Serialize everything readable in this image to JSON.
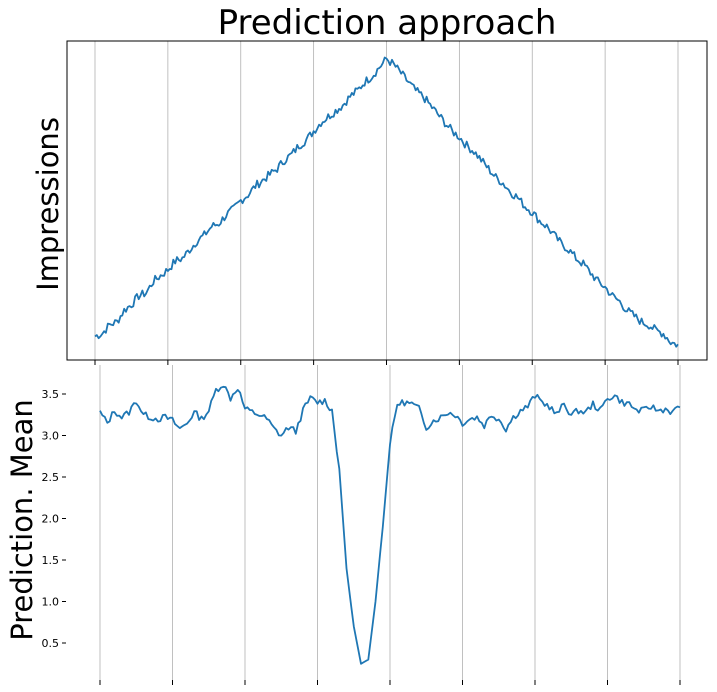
{
  "chart_data": [
    {
      "type": "line",
      "title": "Prediction approach",
      "ylabel": "Impressions",
      "xlabel": "",
      "ytick_labels": [],
      "xtick_labels": [],
      "grid": "vertical",
      "x_grid_count": 9,
      "color": "#1f77b4",
      "xlim": [
        0,
        400
      ],
      "ylim": [
        0,
        1.07
      ],
      "description_points": {
        "x": [
          0,
          5,
          10,
          15,
          20,
          25,
          30,
          35,
          40,
          45,
          50,
          55,
          60,
          65,
          70,
          75,
          80,
          85,
          90,
          95,
          100,
          105,
          110,
          115,
          120,
          125,
          130,
          135,
          140,
          145,
          150,
          155,
          160,
          165,
          170,
          175,
          180,
          185,
          190,
          195,
          200,
          205,
          210,
          215,
          220,
          225,
          230,
          235,
          240,
          245,
          250,
          255,
          260,
          265,
          270,
          275,
          280,
          285,
          290,
          295,
          300,
          305,
          310,
          315,
          320,
          325,
          330,
          335,
          340,
          345,
          350,
          355,
          360,
          365,
          370,
          375,
          380,
          385,
          390,
          395,
          400
        ],
        "y": [
          0.03,
          0.04,
          0.07,
          0.08,
          0.12,
          0.14,
          0.17,
          0.18,
          0.22,
          0.24,
          0.26,
          0.29,
          0.3,
          0.33,
          0.36,
          0.38,
          0.41,
          0.42,
          0.45,
          0.47,
          0.5,
          0.52,
          0.55,
          0.57,
          0.59,
          0.61,
          0.64,
          0.66,
          0.69,
          0.71,
          0.74,
          0.77,
          0.79,
          0.81,
          0.83,
          0.86,
          0.88,
          0.91,
          0.93,
          0.96,
          0.99,
          0.97,
          0.94,
          0.91,
          0.88,
          0.86,
          0.83,
          0.8,
          0.77,
          0.74,
          0.72,
          0.69,
          0.67,
          0.64,
          0.61,
          0.58,
          0.56,
          0.53,
          0.51,
          0.48,
          0.46,
          0.43,
          0.41,
          0.38,
          0.35,
          0.33,
          0.3,
          0.28,
          0.25,
          0.22,
          0.2,
          0.17,
          0.15,
          0.12,
          0.1,
          0.08,
          0.07,
          0.05,
          0.04,
          0.01,
          0.0
        ]
      }
    },
    {
      "type": "line",
      "title": "",
      "ylabel": "Prediction. Mean",
      "xlabel": "",
      "yticks": [
        0.5,
        1.0,
        1.5,
        2.0,
        2.5,
        3.0,
        3.5
      ],
      "ytick_labels": [
        "0.5",
        "1.0",
        "1.5",
        "2.0",
        "2.5",
        "3.0",
        "3.5"
      ],
      "xtick_labels": [],
      "grid": "vertical",
      "x_grid_count": 8,
      "color": "#1f77b4",
      "xlim": [
        0,
        400
      ],
      "ylim": [
        0.0,
        3.85
      ],
      "points": {
        "x": [
          0,
          5,
          10,
          15,
          20,
          25,
          30,
          35,
          40,
          45,
          50,
          55,
          60,
          65,
          70,
          75,
          80,
          85,
          90,
          95,
          100,
          105,
          110,
          115,
          120,
          125,
          130,
          135,
          140,
          145,
          150,
          155,
          160,
          165,
          170,
          175,
          180,
          185,
          190,
          195,
          200,
          205,
          210,
          215,
          220,
          225,
          230,
          235,
          240,
          245,
          250,
          255,
          260,
          265,
          270,
          275,
          280,
          285,
          290,
          295,
          300,
          305,
          310,
          315,
          320,
          325,
          330,
          335,
          340,
          345,
          350,
          355,
          360,
          365,
          370,
          375,
          380,
          385,
          390,
          395,
          400
        ],
        "y": [
          3.28,
          3.15,
          3.3,
          3.22,
          3.28,
          3.42,
          3.25,
          3.22,
          3.2,
          3.22,
          3.18,
          3.08,
          3.15,
          3.28,
          3.2,
          3.3,
          3.55,
          3.62,
          3.45,
          3.58,
          3.32,
          3.28,
          3.25,
          3.2,
          3.08,
          3.0,
          3.1,
          3.05,
          3.3,
          3.45,
          3.4,
          3.42,
          3.3,
          2.6,
          1.4,
          0.7,
          0.25,
          0.3,
          1.0,
          1.9,
          2.9,
          3.38,
          3.4,
          3.38,
          3.32,
          3.1,
          3.18,
          3.22,
          3.28,
          3.25,
          3.15,
          3.2,
          3.22,
          3.12,
          3.25,
          3.2,
          3.08,
          3.22,
          3.3,
          3.35,
          3.48,
          3.4,
          3.35,
          3.25,
          3.38,
          3.25,
          3.3,
          3.28,
          3.38,
          3.3,
          3.45,
          3.48,
          3.4,
          3.38,
          3.3,
          3.3,
          3.35,
          3.3,
          3.32,
          3.28,
          3.35
        ]
      }
    }
  ]
}
